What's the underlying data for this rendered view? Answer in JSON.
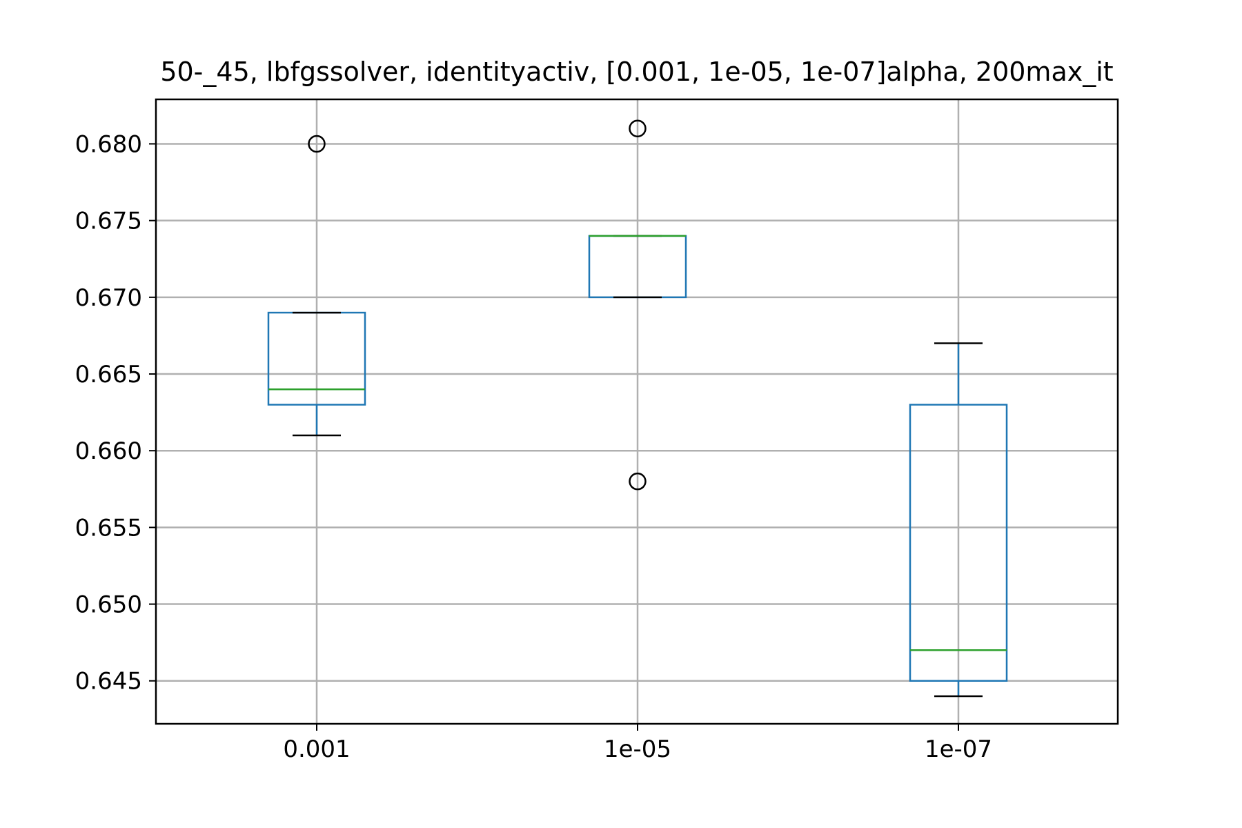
{
  "chart_data": {
    "type": "box",
    "title": "50-_45, lbfgssolver, identityactiv, [0.001, 1e-05, 1e-07]alpha, 200max_it",
    "xlabel": "",
    "ylabel": "",
    "categories": [
      "0.001",
      "1e-05",
      "1e-07"
    ],
    "boxes": [
      {
        "category": "0.001",
        "whisker_low": 0.661,
        "q1": 0.663,
        "median": 0.664,
        "q3": 0.669,
        "whisker_high": 0.669,
        "outliers": [
          0.68
        ]
      },
      {
        "category": "1e-05",
        "whisker_low": 0.67,
        "q1": 0.67,
        "median": 0.674,
        "q3": 0.674,
        "whisker_high": 0.674,
        "outliers": [
          0.681,
          0.658
        ]
      },
      {
        "category": "1e-07",
        "whisker_low": 0.644,
        "q1": 0.645,
        "median": 0.647,
        "q3": 0.663,
        "whisker_high": 0.667,
        "outliers": []
      }
    ],
    "ylim": [
      0.6422,
      0.6829
    ],
    "yticks": [
      "0.645",
      "0.650",
      "0.655",
      "0.660",
      "0.665",
      "0.670",
      "0.675",
      "0.680"
    ],
    "grid": true,
    "colors": {
      "box": "#1f77b4",
      "median": "#2ca02c",
      "whisker_cap": "#000000",
      "grid": "#b0b0b0"
    }
  }
}
